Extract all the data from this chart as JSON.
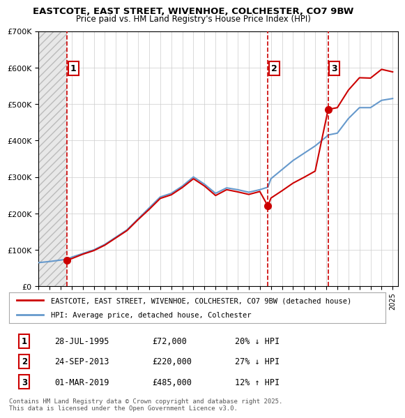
{
  "title1": "EASTCOTE, EAST STREET, WIVENHOE, COLCHESTER, CO7 9BW",
  "title2": "Price paid vs. HM Land Registry's House Price Index (HPI)",
  "sale_dates": [
    "1995-07-28",
    "2013-09-24",
    "2019-03-01"
  ],
  "sale_prices": [
    72000,
    220000,
    485000
  ],
  "sale_labels": [
    "1",
    "2",
    "3"
  ],
  "sale_date_nums": [
    1995.57,
    2013.73,
    2019.17
  ],
  "legend_red": "EASTCOTE, EAST STREET, WIVENHOE, COLCHESTER, CO7 9BW (detached house)",
  "legend_blue": "HPI: Average price, detached house, Colchester",
  "table_rows": [
    [
      "1",
      "28-JUL-1995",
      "£72,000",
      "20% ↓ HPI"
    ],
    [
      "2",
      "24-SEP-2013",
      "£220,000",
      "27% ↓ HPI"
    ],
    [
      "3",
      "01-MAR-2019",
      "£485,000",
      "12% ↑ HPI"
    ]
  ],
  "footnote": "Contains HM Land Registry data © Crown copyright and database right 2025.\nThis data is licensed under the Open Government Licence v3.0.",
  "xlim": [
    1993.0,
    2025.5
  ],
  "ylim": [
    0,
    700000
  ],
  "red_color": "#cc0000",
  "blue_color": "#6699cc",
  "hatch_color": "#cccccc",
  "bg_color": "#ffffff",
  "hpi_years": [
    1993,
    1994,
    1995,
    1995.57,
    1996,
    1997,
    1998,
    1999,
    2000,
    2001,
    2002,
    2003,
    2004,
    2005,
    2006,
    2007,
    2008,
    2009,
    2010,
    2011,
    2012,
    2013,
    2013.73,
    2014,
    2015,
    2016,
    2017,
    2018,
    2019,
    2019.17,
    2020,
    2021,
    2022,
    2023,
    2024,
    2025
  ],
  "hpi_values": [
    65000,
    68000,
    72000,
    74000,
    80000,
    90000,
    100000,
    115000,
    135000,
    155000,
    185000,
    215000,
    245000,
    255000,
    275000,
    300000,
    280000,
    255000,
    270000,
    265000,
    258000,
    265000,
    272000,
    295000,
    320000,
    345000,
    365000,
    385000,
    410000,
    415000,
    420000,
    460000,
    490000,
    490000,
    510000,
    515000
  ],
  "red_years": [
    1995.57,
    1996,
    1997,
    1998,
    1999,
    2000,
    2001,
    2002,
    2003,
    2004,
    2005,
    2006,
    2007,
    2008,
    2009,
    2010,
    2011,
    2012,
    2013,
    2013.73,
    2014,
    2015,
    2016,
    2017,
    2018,
    2019.17,
    2020,
    2021,
    2022,
    2023,
    2024,
    2025
  ],
  "red_values": [
    72000,
    76000,
    88000,
    98000,
    113000,
    133000,
    153000,
    183000,
    211000,
    241000,
    251000,
    271000,
    295000,
    275000,
    249000,
    265000,
    259000,
    252000,
    260000,
    220000,
    242000,
    262000,
    283000,
    299000,
    316000,
    485000,
    490000,
    538000,
    572000,
    571000,
    595000,
    588000
  ]
}
